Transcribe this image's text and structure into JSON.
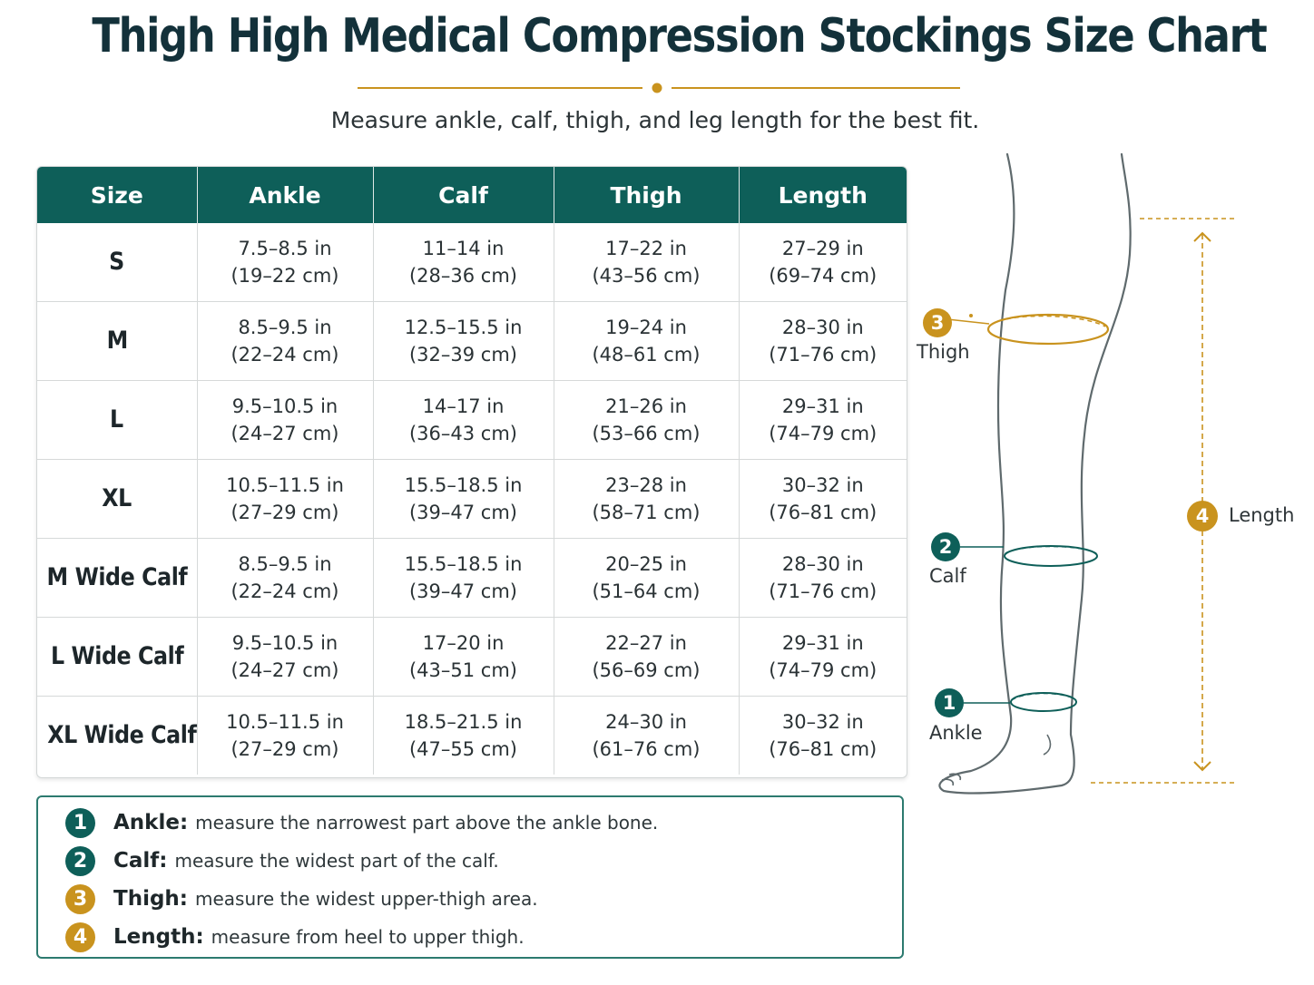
{
  "title": "Thigh High Medical Compression Stockings Size Chart",
  "subtitle": "Measure ankle, calf, thigh, and leg length for the best fit.",
  "colors": {
    "header_teal": "#0e5f59",
    "accent_gold": "#c9931e",
    "title_navy": "#13313a"
  },
  "table": {
    "headers": [
      "Size",
      "Ankle",
      "Calf",
      "Thigh",
      "Length"
    ],
    "rows": [
      {
        "size": "S",
        "ankle_in": "7.5–8.5 in",
        "ankle_cm": "(19–22 cm)",
        "calf_in": "11–14 in",
        "calf_cm": "(28–36 cm)",
        "thigh_in": "17–22 in",
        "thigh_cm": "(43–56 cm)",
        "length_in": "27–29 in",
        "length_cm": "(69–74 cm)"
      },
      {
        "size": "M",
        "ankle_in": "8.5–9.5 in",
        "ankle_cm": "(22–24 cm)",
        "calf_in": "12.5–15.5 in",
        "calf_cm": "(32–39 cm)",
        "thigh_in": "19–24 in",
        "thigh_cm": "(48–61 cm)",
        "length_in": "28–30 in",
        "length_cm": "(71–76 cm)"
      },
      {
        "size": "L",
        "ankle_in": "9.5–10.5 in",
        "ankle_cm": "(24–27 cm)",
        "calf_in": "14–17 in",
        "calf_cm": "(36–43 cm)",
        "thigh_in": "21–26 in",
        "thigh_cm": "(53–66 cm)",
        "length_in": "29–31 in",
        "length_cm": "(74–79 cm)"
      },
      {
        "size": "XL",
        "ankle_in": "10.5–11.5 in",
        "ankle_cm": "(27–29 cm)",
        "calf_in": "15.5–18.5 in",
        "calf_cm": "(39–47 cm)",
        "thigh_in": "23–28 in",
        "thigh_cm": "(58–71 cm)",
        "length_in": "30–32 in",
        "length_cm": "(76–81 cm)"
      },
      {
        "size": "M Wide Calf",
        "ankle_in": "8.5–9.5 in",
        "ankle_cm": "(22–24 cm)",
        "calf_in": "15.5–18.5 in",
        "calf_cm": "(39–47 cm)",
        "thigh_in": "20–25 in",
        "thigh_cm": "(51–64 cm)",
        "length_in": "28–30 in",
        "length_cm": "(71–76 cm)"
      },
      {
        "size": "L Wide Calf",
        "ankle_in": "9.5–10.5 in",
        "ankle_cm": "(24–27 cm)",
        "calf_in": "17–20 in",
        "calf_cm": "(43–51 cm)",
        "thigh_in": "22–27 in",
        "thigh_cm": "(56–69 cm)",
        "length_in": "29–31 in",
        "length_cm": "(74–79 cm)"
      },
      {
        "size": "XL Wide Calf",
        "ankle_in": "10.5–11.5 in",
        "ankle_cm": "(27–29 cm)",
        "calf_in": "18.5–21.5 in",
        "calf_cm": "(47–55 cm)",
        "thigh_in": "24–30 in",
        "thigh_cm": "(61–76 cm)",
        "length_in": "30–32 in",
        "length_cm": "(76–81 cm)"
      }
    ]
  },
  "legend": [
    {
      "num": "1",
      "term": "Ankle:",
      "desc": "measure the narrowest part above the ankle bone.",
      "color": "teal"
    },
    {
      "num": "2",
      "term": "Calf:",
      "desc": "measure the widest part of the calf.",
      "color": "teal"
    },
    {
      "num": "3",
      "term": "Thigh:",
      "desc": "measure the widest upper-thigh area.",
      "color": "gold"
    },
    {
      "num": "4",
      "term": "Length:",
      "desc": "measure from heel to upper thigh.",
      "color": "gold"
    }
  ],
  "diagram": {
    "thigh": {
      "num": "3",
      "label": "Thigh"
    },
    "calf": {
      "num": "2",
      "label": "Calf"
    },
    "ankle": {
      "num": "1",
      "label": "Ankle"
    },
    "length": {
      "num": "4",
      "label": "Length"
    }
  }
}
